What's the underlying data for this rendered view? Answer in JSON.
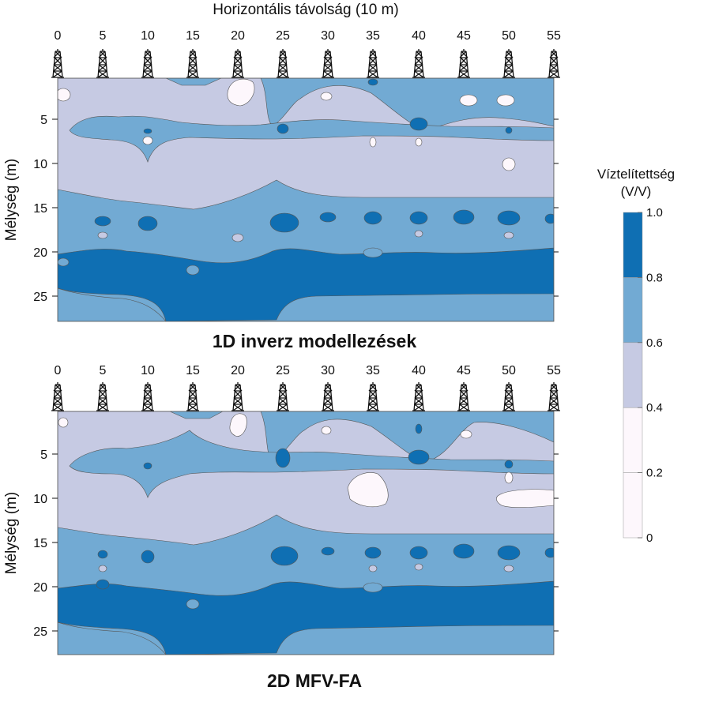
{
  "chart_data": {
    "type": "heatmap",
    "x_axis_title": "Horizontális távolság (10 m)",
    "y_axis_title": "Mélység (m)",
    "x_ticks": [
      0,
      5,
      10,
      15,
      20,
      25,
      30,
      35,
      40,
      45,
      50,
      55
    ],
    "y_ticks": [
      5,
      10,
      15,
      20,
      25
    ],
    "xlim": [
      0,
      55
    ],
    "ylim": [
      0,
      27.5
    ],
    "legend": {
      "title_line1": "Víztelítettség",
      "title_line2": "(V/V)",
      "levels": [
        0,
        0.2,
        0.4,
        0.6,
        0.8,
        1.0
      ],
      "tick_labels": [
        "0",
        "0.2",
        "0.4",
        "0.6",
        "0.8",
        "1.0"
      ],
      "placement": "right",
      "colors": [
        "#fdf7fc",
        "#fdf7fc",
        "#c6cae3",
        "#72aad3",
        "#0f6fb3"
      ]
    },
    "panels": [
      {
        "title": "1D inverz modellezések",
        "layers": [
          {
            "depth_from": 0,
            "depth_to": 6,
            "saturation_class": "0.4-0.6"
          },
          {
            "depth_from": 6,
            "depth_to": 8,
            "saturation_class": "0.6-0.8"
          },
          {
            "depth_from": 8,
            "depth_to": 14,
            "saturation_class": "0.4-0.6"
          },
          {
            "depth_from": 14,
            "depth_to": 20,
            "saturation_class": "0.6-0.8"
          },
          {
            "depth_from": 20,
            "depth_to": 24,
            "saturation_class": "0.8-1.0"
          },
          {
            "depth_from": 24,
            "depth_to": 27.5,
            "saturation_class": "0.6-0.8"
          }
        ]
      },
      {
        "title": "2D MFV-FA",
        "layers": [
          {
            "depth_from": 0,
            "depth_to": 6,
            "saturation_class": "0.4-0.6"
          },
          {
            "depth_from": 6,
            "depth_to": 8,
            "saturation_class": "0.6-0.8"
          },
          {
            "depth_from": 8,
            "depth_to": 14,
            "saturation_class": "0.4-0.6"
          },
          {
            "depth_from": 14,
            "depth_to": 20,
            "saturation_class": "0.6-0.8"
          },
          {
            "depth_from": 20,
            "depth_to": 24,
            "saturation_class": "0.8-1.0"
          },
          {
            "depth_from": 24,
            "depth_to": 27.5,
            "saturation_class": "0.6-0.8"
          }
        ]
      }
    ]
  }
}
